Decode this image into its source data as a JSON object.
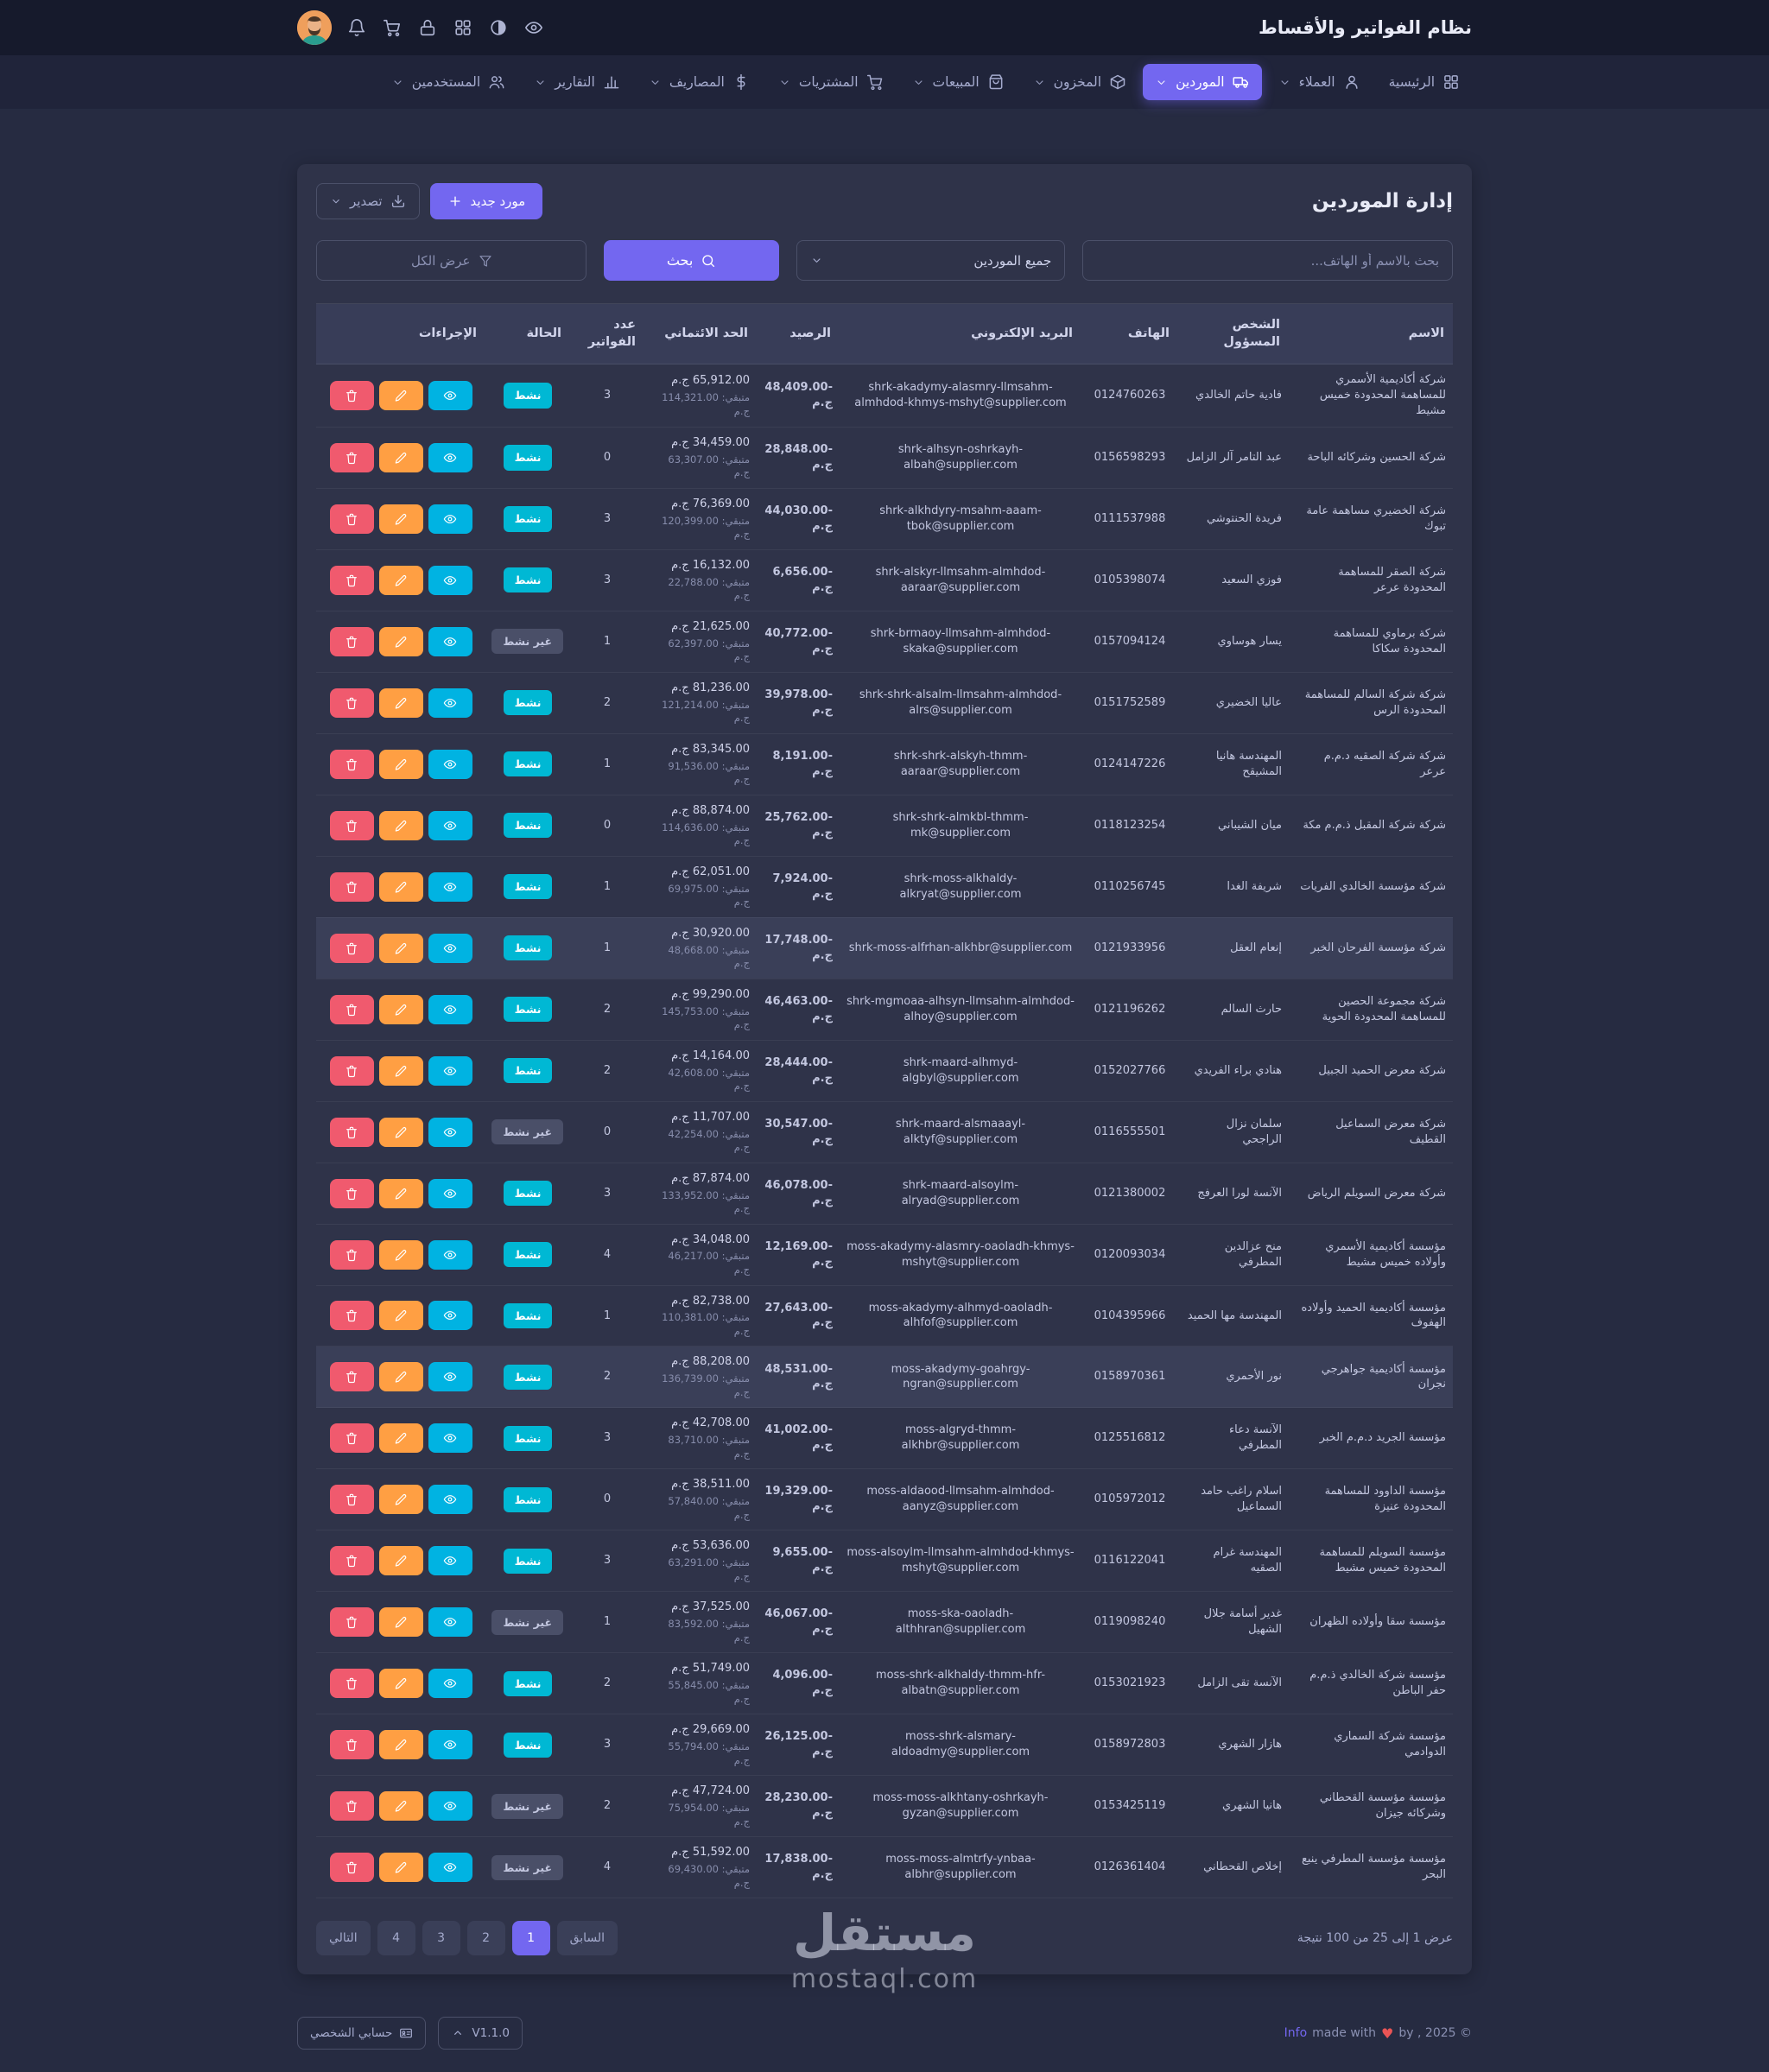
{
  "theme": {
    "accent": "#7367f0",
    "success": "#2ecb8a",
    "info": "#00b8d4",
    "warning": "#ff9f43",
    "danger": "#f05a6e",
    "background": "#262b41",
    "card": "#2f3349"
  },
  "topbar": {
    "title": "نظام الفواتير والأقساط",
    "icons": [
      "eye",
      "palette",
      "grid",
      "lock",
      "cart",
      "bell"
    ]
  },
  "nav": {
    "items": [
      {
        "id": "home",
        "label": "الرئيسية",
        "icon": "grid",
        "chevron": false,
        "active": false
      },
      {
        "id": "clients",
        "label": "العملاء",
        "icon": "user",
        "chevron": true,
        "active": false
      },
      {
        "id": "suppliers",
        "label": "الموردين",
        "icon": "truck",
        "chevron": true,
        "active": true
      },
      {
        "id": "inventory",
        "label": "المخزون",
        "icon": "box",
        "chevron": true,
        "active": false
      },
      {
        "id": "sales",
        "label": "المبيعات",
        "icon": "bag",
        "chevron": true,
        "active": false
      },
      {
        "id": "purchases",
        "label": "المشتريات",
        "icon": "cart",
        "chevron": true,
        "active": false
      },
      {
        "id": "expenses",
        "label": "المصاريف",
        "icon": "dollar",
        "chevron": true,
        "active": false
      },
      {
        "id": "reports",
        "label": "التقارير",
        "icon": "chart",
        "chevron": true,
        "active": false
      },
      {
        "id": "users",
        "label": "المستخدمين",
        "icon": "users",
        "chevron": true,
        "active": false
      }
    ]
  },
  "page": {
    "title": "إدارة الموردين",
    "new_supplier": "مورد جديد",
    "export": "تصدير",
    "search_placeholder": "بحث بالاسم أو الهاتف...",
    "filter_all": "جميع الموردين",
    "search_button": "بحث",
    "show_all": "عرض الكل"
  },
  "table": {
    "headers": [
      "الاسم",
      "الشخص المسؤول",
      "الهاتف",
      "البريد الإلكتروني",
      "الرصيد",
      "الحد الائتماني",
      "عدد الفواتير",
      "الحالة",
      "الإجراءات"
    ],
    "remaining_label": "متبقي:",
    "currency": "ج.م",
    "status_active": "نشط",
    "status_inactive": "غير نشط",
    "rows": [
      {
        "name": "شركة أكاديمية الأسمري للمساهمة المحدودة خميس مشيط",
        "person": "فادية حاتم الخالدي",
        "phone": "0124760263",
        "email": "shrk-akadymy-alasmry-llmsahm-almhdod-khmys-mshyt@supplier.com",
        "balance": "48,409.00-",
        "credit": "65,912.00",
        "remaining": "114,321.00",
        "invoices": 3,
        "status": "active",
        "highlight": false
      },
      {
        "name": "شركة الحسين وشركائه الباحة",
        "person": "عبد التامر آلر الزامل",
        "phone": "0156598293",
        "email": "shrk-alhsyn-oshrkayh-albah@supplier.com",
        "balance": "28,848.00-",
        "credit": "34,459.00",
        "remaining": "63,307.00",
        "invoices": 0,
        "status": "active",
        "highlight": false
      },
      {
        "name": "شركة الخضيري مساهمة عامة تبوك",
        "person": "فريدة الحنتوشي",
        "phone": "0111537988",
        "email": "shrk-alkhdyry-msahm-aaam-tbok@supplier.com",
        "balance": "44,030.00-",
        "credit": "76,369.00",
        "remaining": "120,399.00",
        "invoices": 3,
        "status": "active",
        "highlight": false
      },
      {
        "name": "شركة الصقر للمساهمة المحدودة عرعر",
        "person": "فوزي السعيد",
        "phone": "0105398074",
        "email": "shrk-alskyr-llmsahm-almhdod-aaraar@supplier.com",
        "balance": "6,656.00-",
        "credit": "16,132.00",
        "remaining": "22,788.00",
        "invoices": 3,
        "status": "active",
        "highlight": false
      },
      {
        "name": "شركة برماوي للمساهمة المحدودة سكاكا",
        "person": "يسار هوساوي",
        "phone": "0157094124",
        "email": "shrk-brmaoy-llmsahm-almhdod-skaka@supplier.com",
        "balance": "40,772.00-",
        "credit": "21,625.00",
        "remaining": "62,397.00",
        "invoices": 1,
        "status": "inactive",
        "highlight": false
      },
      {
        "name": "شركة شركة السالم للمساهمة المحدودة الرس",
        "person": "عاليا الخضيري",
        "phone": "0151752589",
        "email": "shrk-shrk-alsalm-llmsahm-almhdod-alrs@supplier.com",
        "balance": "39,978.00-",
        "credit": "81,236.00",
        "remaining": "121,214.00",
        "invoices": 2,
        "status": "active",
        "highlight": false
      },
      {
        "name": "شركة شركة الصقيه د.م.م عرعر",
        "person": "المهندسة هانيا المشيقح",
        "phone": "0124147226",
        "email": "shrk-shrk-alskyh-thmm-aaraar@supplier.com",
        "balance": "8,191.00-",
        "credit": "83,345.00",
        "remaining": "91,536.00",
        "invoices": 1,
        "status": "active",
        "highlight": false
      },
      {
        "name": "شركة شركة المقبل ذ.م.م مكة",
        "person": "ميان الشيباني",
        "phone": "0118123254",
        "email": "shrk-shrk-almkbl-thmm-mk@supplier.com",
        "balance": "25,762.00-",
        "credit": "88,874.00",
        "remaining": "114,636.00",
        "invoices": 0,
        "status": "active",
        "highlight": false
      },
      {
        "name": "شركة مؤسسة الخالدي الفريات",
        "person": "شريفة الغدا",
        "phone": "0110256745",
        "email": "shrk-moss-alkhaldy-alkryat@supplier.com",
        "balance": "7,924.00-",
        "credit": "62,051.00",
        "remaining": "69,975.00",
        "invoices": 1,
        "status": "active",
        "highlight": false
      },
      {
        "name": "شركة مؤسسة الفرحان الخبر",
        "person": "إنعام العقل",
        "phone": "0121933956",
        "email": "shrk-moss-alfrhan-alkhbr@supplier.com",
        "balance": "17,748.00-",
        "credit": "30,920.00",
        "remaining": "48,668.00",
        "invoices": 1,
        "status": "active",
        "highlight": true
      },
      {
        "name": "شركة مجموعة الحصين للمساهمة المحدودة الحوية",
        "person": "حارث السالم",
        "phone": "0121196262",
        "email": "shrk-mgmoaa-alhsyn-llmsahm-almhdod-alhoy@supplier.com",
        "balance": "46,463.00-",
        "credit": "99,290.00",
        "remaining": "145,753.00",
        "invoices": 2,
        "status": "active",
        "highlight": false
      },
      {
        "name": "شركة معرض الحميد الجبيل",
        "person": "هنادي براء الفريدي",
        "phone": "0152027766",
        "email": "shrk-maard-alhmyd-algbyl@supplier.com",
        "balance": "28,444.00-",
        "credit": "14,164.00",
        "remaining": "42,608.00",
        "invoices": 2,
        "status": "active",
        "highlight": false
      },
      {
        "name": "شركة معرض السماعيل القطيف",
        "person": "سلمان نزال الراجحي",
        "phone": "0116555501",
        "email": "shrk-maard-alsmaaayl-alktyf@supplier.com",
        "balance": "30,547.00-",
        "credit": "11,707.00",
        "remaining": "42,254.00",
        "invoices": 0,
        "status": "inactive",
        "highlight": false
      },
      {
        "name": "شركة معرض السويلم الرياض",
        "person": "الآنسة لورا العرفج",
        "phone": "0121380002",
        "email": "shrk-maard-alsoylm-alryad@supplier.com",
        "balance": "46,078.00-",
        "credit": "87,874.00",
        "remaining": "133,952.00",
        "invoices": 3,
        "status": "active",
        "highlight": false
      },
      {
        "name": "مؤسسة أكاديمية الأسمري وأولاده خميس مشيط",
        "person": "منح عزالدين المطرفي",
        "phone": "0120093034",
        "email": "moss-akadymy-alasmry-oaoladh-khmys-mshyt@supplier.com",
        "balance": "12,169.00-",
        "credit": "34,048.00",
        "remaining": "46,217.00",
        "invoices": 4,
        "status": "active",
        "highlight": false
      },
      {
        "name": "مؤسسة أكاديمية الحميد وأولاده الهفوف",
        "person": "المهندسة مها الحميد",
        "phone": "0104395966",
        "email": "moss-akadymy-alhmyd-oaoladh-alhfof@supplier.com",
        "balance": "27,643.00-",
        "credit": "82,738.00",
        "remaining": "110,381.00",
        "invoices": 1,
        "status": "active",
        "highlight": false
      },
      {
        "name": "مؤسسة أكاديمية جواهرجي نجران",
        "person": "نور الأحمري",
        "phone": "0158970361",
        "email": "moss-akadymy-goahrgy-ngran@supplier.com",
        "balance": "48,531.00-",
        "credit": "88,208.00",
        "remaining": "136,739.00",
        "invoices": 2,
        "status": "active",
        "highlight": true
      },
      {
        "name": "مؤسسة الجريد د.م.م الخبر",
        "person": "الآنسة دعاء المطرفي",
        "phone": "0125516812",
        "email": "moss-algryd-thmm-alkhbr@supplier.com",
        "balance": "41,002.00-",
        "credit": "42,708.00",
        "remaining": "83,710.00",
        "invoices": 3,
        "status": "active",
        "highlight": false
      },
      {
        "name": "مؤسسة الداوود للمساهمة المحدودة عنيزة",
        "person": "اسلام راغب حامد السماعيل",
        "phone": "0105972012",
        "email": "moss-aldaood-llmsahm-almhdod-aanyz@supplier.com",
        "balance": "19,329.00-",
        "credit": "38,511.00",
        "remaining": "57,840.00",
        "invoices": 0,
        "status": "active",
        "highlight": false
      },
      {
        "name": "مؤسسة السويلم للمساهمة المحدودة خميس مشيط",
        "person": "المهندسة غرام الصقيه",
        "phone": "0116122041",
        "email": "moss-alsoylm-llmsahm-almhdod-khmys-mshyt@supplier.com",
        "balance": "9,655.00-",
        "credit": "53,636.00",
        "remaining": "63,291.00",
        "invoices": 3,
        "status": "active",
        "highlight": false
      },
      {
        "name": "مؤسسة سقا وأولاده الظهران",
        "person": "غدير أسامة جلال الشهيل",
        "phone": "0119098240",
        "email": "moss-ska-oaoladh-althhran@supplier.com",
        "balance": "46,067.00-",
        "credit": "37,525.00",
        "remaining": "83,592.00",
        "invoices": 1,
        "status": "inactive",
        "highlight": false
      },
      {
        "name": "مؤسسة شركة الخالدي ذ.م.م حفر الباطن",
        "person": "الآنسة تقى الزامل",
        "phone": "0153021923",
        "email": "moss-shrk-alkhaldy-thmm-hfr-albatn@supplier.com",
        "balance": "4,096.00-",
        "credit": "51,749.00",
        "remaining": "55,845.00",
        "invoices": 2,
        "status": "active",
        "highlight": false
      },
      {
        "name": "مؤسسة شركة السماري الدوادمي",
        "person": "هازار الشهري",
        "phone": "0158972803",
        "email": "moss-shrk-alsmary-aldoadmy@supplier.com",
        "balance": "26,125.00-",
        "credit": "29,669.00",
        "remaining": "55,794.00",
        "invoices": 3,
        "status": "active",
        "highlight": false
      },
      {
        "name": "مؤسسة مؤسسة القحطاني وشركائه جيزان",
        "person": "هانيا الشهري",
        "phone": "0153425119",
        "email": "moss-moss-alkhtany-oshrkayh-gyzan@supplier.com",
        "balance": "28,230.00-",
        "credit": "47,724.00",
        "remaining": "75,954.00",
        "invoices": 2,
        "status": "inactive",
        "highlight": false
      },
      {
        "name": "مؤسسة مؤسسة المطرفي ينبع البحر",
        "person": "إخلاص القحطاني",
        "phone": "0126361404",
        "email": "moss-moss-almtrfy-ynbaa-albhr@supplier.com",
        "balance": "17,838.00-",
        "credit": "51,592.00",
        "remaining": "69,430.00",
        "invoices": 4,
        "status": "inactive",
        "highlight": false
      }
    ]
  },
  "pagination": {
    "prev": "السابق",
    "next": "التالي",
    "pages": [
      "1",
      "2",
      "3",
      "4"
    ],
    "active": "1",
    "summary": "عرض 1 إلى 25 من 100 نتيجة"
  },
  "footer": {
    "account": "حسابي الشخصي",
    "version": "V1.1.0",
    "info": "Info",
    "made_with": "made with",
    "heart": "♥",
    "by": "by , 2025 ©"
  },
  "watermark": {
    "title": "مستقل",
    "domain": "mostaql.com"
  }
}
